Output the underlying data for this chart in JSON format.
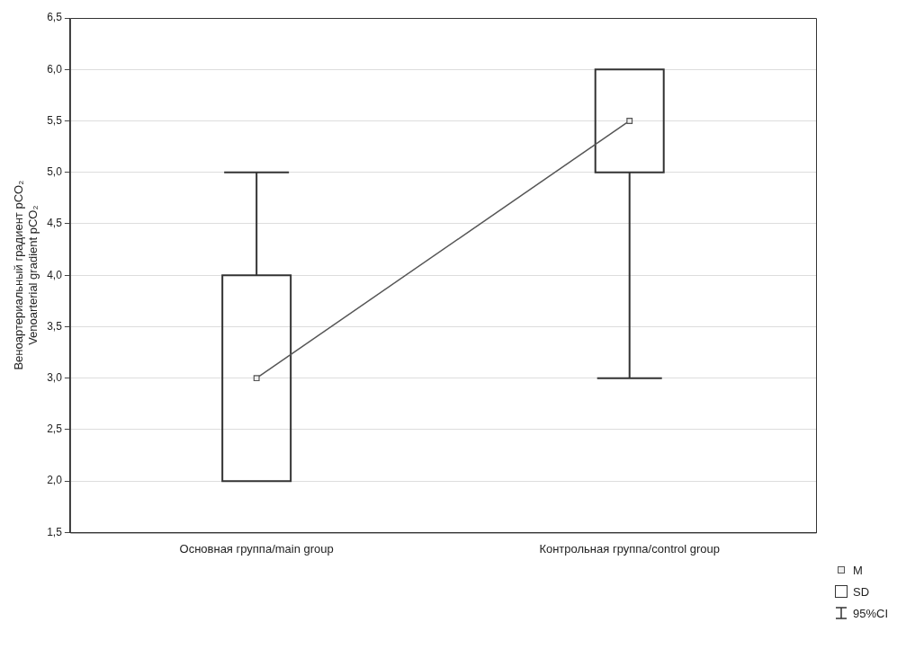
{
  "chart_data": {
    "type": "box",
    "ylabel": "Веноартериальный градиент pCO₂\nVenoarterial gradient pCO₂",
    "categories": [
      "Основная группа/main group",
      "Контрольная группа/control group"
    ],
    "series": [
      {
        "name": "SD",
        "type": "box",
        "color": "#333333",
        "boxes": [
          {
            "low": 2.0,
            "q1": 2.0,
            "q3": 4.0,
            "high": 5.0
          },
          {
            "low": 3.0,
            "q1": 5.0,
            "q3": 6.0,
            "high": 6.0
          }
        ]
      },
      {
        "name": "M",
        "type": "line",
        "color": "#555555",
        "marker": "square",
        "values": [
          3.0,
          5.5
        ]
      }
    ],
    "annotations": [
      "95%CI"
    ],
    "ylim": [
      1.5,
      6.5
    ],
    "yticks": [
      {
        "value": 1.5,
        "label": "1,5"
      },
      {
        "value": 2.0,
        "label": "2,0"
      },
      {
        "value": 2.5,
        "label": "2,5"
      },
      {
        "value": 3.0,
        "label": "3,0"
      },
      {
        "value": 3.5,
        "label": "3,5"
      },
      {
        "value": 4.0,
        "label": "4,0"
      },
      {
        "value": 4.5,
        "label": "4,5"
      },
      {
        "value": 5.0,
        "label": "5,0"
      },
      {
        "value": 5.5,
        "label": "5,5"
      },
      {
        "value": 6.0,
        "label": "6,0"
      },
      {
        "value": 6.5,
        "label": "6,5"
      }
    ],
    "grid": "y",
    "legend": "bottom right"
  }
}
